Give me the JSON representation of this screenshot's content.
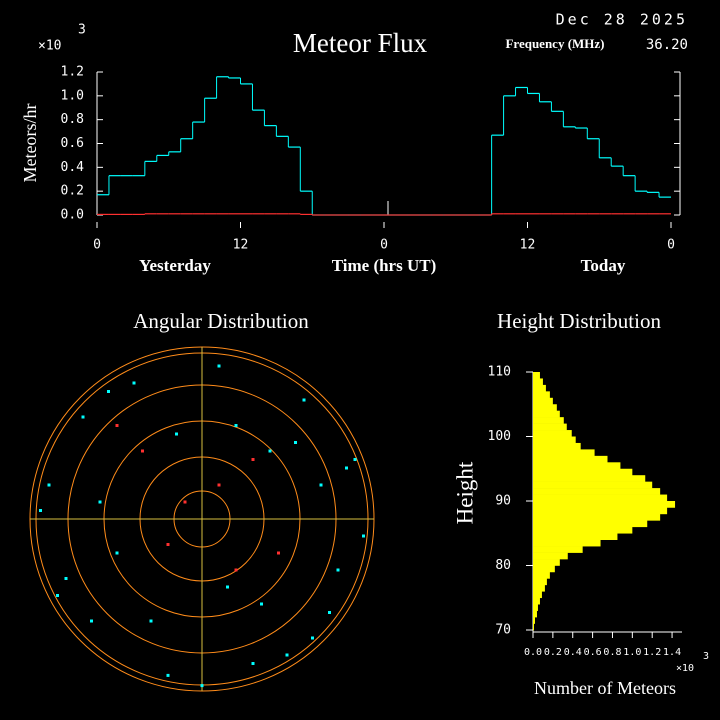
{
  "chart_data": [
    {
      "type": "step",
      "title": "Meteor Flux",
      "date": "Dec 28 2025",
      "frequency_label": "Frequency (MHz)",
      "frequency": "36.20",
      "y_label": "Meteors/hr",
      "multiplier": "×10",
      "exponent": "3",
      "x_labels": [
        "Yesterday",
        "Time (hrs UT)",
        "Today"
      ],
      "x": [
        0,
        1,
        2,
        3,
        4,
        5,
        6,
        7,
        8,
        9,
        10,
        11,
        12,
        13,
        14,
        15,
        16,
        17,
        18,
        19,
        20,
        21,
        22,
        23,
        24,
        25,
        26,
        27,
        28,
        29,
        30,
        31,
        32,
        33,
        34,
        35,
        36,
        37,
        38,
        39,
        40,
        41,
        42,
        43,
        44,
        45,
        46,
        47
      ],
      "xlim": [
        0,
        48
      ],
      "xticks": [
        0,
        12,
        {
          "value": 24,
          "label": "0"
        },
        {
          "value": 36,
          "label": "12"
        },
        {
          "value": 48,
          "label": "0"
        }
      ],
      "ylim": [
        0,
        1.2
      ],
      "yticks": [
        {
          "value": 0,
          "label": "0.0"
        },
        0.2,
        0.4,
        0.6,
        0.8,
        {
          "value": 1,
          "label": "1.0"
        },
        1.2
      ],
      "series": [
        {
          "color": "#00ffff",
          "values": [
            0.17,
            0.33,
            0.33,
            0.33,
            0.45,
            0.5,
            0.53,
            0.64,
            0.78,
            0.98,
            1.16,
            1.15,
            1.1,
            0.88,
            0.75,
            0.66,
            0.57,
            0.2,
            0,
            0,
            0,
            0,
            0,
            0,
            0,
            0,
            0,
            0,
            0,
            0,
            0,
            0,
            0,
            0.67,
            1.0,
            1.07,
            1.02,
            0.95,
            0.87,
            0.74,
            0.73,
            0.64,
            0.48,
            0.41,
            0.33,
            0.2,
            0.19,
            0.15
          ]
        },
        {
          "color": "#ff3030",
          "values": [
            0.005,
            0.005,
            0.005,
            0.005,
            0.01,
            0.01,
            0.01,
            0.01,
            0.01,
            0.01,
            0.01,
            0.01,
            0.01,
            0.01,
            0.01,
            0.01,
            0.01,
            0.005,
            0,
            0,
            0,
            0,
            0,
            0,
            0,
            0,
            0,
            0,
            0,
            0,
            0,
            0,
            0,
            0.01,
            0.01,
            0.01,
            0.01,
            0.01,
            0.01,
            0.01,
            0.01,
            0.01,
            0.01,
            0.01,
            0.01,
            0.01,
            0.01,
            0.01
          ]
        }
      ]
    },
    {
      "type": "polar-scatter",
      "title": "Angular Distribution",
      "xlim": [
        -1,
        1
      ],
      "ylim": [
        -1,
        1
      ],
      "series": [
        {
          "color": "#00ffff",
          "x": [
            0.85,
            -0.9,
            0.1,
            -0.2,
            0.6,
            -0.65,
            0.95,
            -0.4,
            0.3,
            0.75,
            -0.8,
            0.2,
            -0.95,
            0.5,
            -0.55,
            0.0,
            0.9,
            -0.3,
            0.4,
            -0.7,
            0.65,
            -0.15,
            0.8,
            -0.85,
            0.35,
            0.55,
            -0.5,
            0.15,
            -0.6,
            0.7
          ],
          "y": [
            0.3,
            0.2,
            0.9,
            -0.92,
            0.7,
            -0.6,
            -0.1,
            0.8,
            -0.85,
            -0.55,
            -0.35,
            0.55,
            0.05,
            -0.8,
            0.75,
            -0.98,
            0.35,
            -0.6,
            0.4,
            0.6,
            -0.7,
            0.5,
            -0.3,
            -0.45,
            -0.5,
            0.45,
            -0.2,
            -0.4,
            0.1,
            0.2
          ]
        },
        {
          "color": "#ff3030",
          "x": [
            0.1,
            -0.2,
            0.3,
            -0.35,
            0.2,
            -0.1,
            0.45,
            -0.5
          ],
          "y": [
            0.2,
            -0.15,
            0.35,
            0.4,
            -0.3,
            0.1,
            -0.2,
            0.55
          ]
        }
      ]
    },
    {
      "type": "histogram",
      "title": "Height Distribution",
      "y_label": "Height",
      "x_label": "Number of Meteors",
      "multiplier": "×10",
      "exponent": "3",
      "color": "#ffff00",
      "bins": [
        70,
        71,
        72,
        73,
        74,
        75,
        76,
        77,
        78,
        79,
        80,
        81,
        82,
        83,
        84,
        85,
        86,
        87,
        88,
        89,
        90,
        91,
        92,
        93,
        94,
        95,
        96,
        97,
        98,
        99,
        100,
        101,
        102,
        103,
        104,
        105,
        106,
        107,
        108,
        109,
        110
      ],
      "values": [
        0.01,
        0.02,
        0.04,
        0.05,
        0.07,
        0.09,
        0.12,
        0.14,
        0.17,
        0.22,
        0.27,
        0.35,
        0.5,
        0.68,
        0.85,
        1.0,
        1.15,
        1.28,
        1.35,
        1.43,
        1.35,
        1.28,
        1.2,
        1.13,
        1.0,
        0.88,
        0.75,
        0.62,
        0.48,
        0.43,
        0.39,
        0.34,
        0.31,
        0.27,
        0.24,
        0.2,
        0.17,
        0.13,
        0.1,
        0.07
      ],
      "ylim": [
        70,
        110
      ],
      "yticks": [
        70,
        80,
        90,
        100,
        110
      ],
      "xlim": [
        0,
        1.5
      ],
      "xticks": [
        {
          "value": 0,
          "label": "0.0"
        },
        0.2,
        0.4,
        0.6,
        0.8,
        {
          "value": 1,
          "label": "1.0"
        },
        1.2,
        1.4
      ]
    }
  ]
}
